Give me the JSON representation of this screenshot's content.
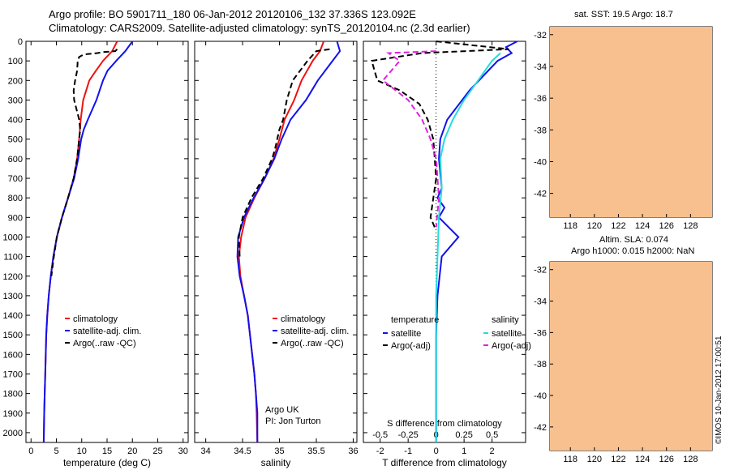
{
  "header": {
    "line1": "Argo profile: BO 5901711_180 06-Jan-2012 20120106_132 37.336S 123.092E",
    "line2": "Climatology: CARS2009. Satellite-adjusted climatology: synTS_20120104.nc (2.3d earlier)"
  },
  "colors": {
    "climatology": "#ee1111",
    "satellite": "#1111ee",
    "argo": "#000000",
    "sal_satellite": "#22dddd",
    "sal_argo": "#dd22dd",
    "land": "#f7c08e"
  },
  "chart_data": [
    {
      "type": "line",
      "id": "temperature",
      "xlabel": "temperature (deg C)",
      "xlim": [
        -1,
        31
      ],
      "ylim": [
        2050,
        0
      ],
      "xticks": [
        0,
        5,
        10,
        15,
        20,
        25,
        30
      ],
      "yticks": [
        0,
        100,
        200,
        300,
        400,
        500,
        600,
        700,
        800,
        900,
        1000,
        1100,
        1200,
        1300,
        1400,
        1500,
        1600,
        1700,
        1800,
        1900,
        2000
      ],
      "legend": [
        "climatology",
        "satellite-adj. clim.",
        "Argo(..raw -QC)"
      ],
      "series": [
        {
          "name": "climatology",
          "color": "#ee1111",
          "style": "solid",
          "x": [
            17,
            16,
            14.2,
            12.8,
            11.5,
            10.3,
            9.8,
            9.5,
            9.1,
            8.4,
            7.3,
            6.1,
            5.1,
            4.4,
            3.9,
            3.5,
            3.2,
            3.0,
            2.9,
            2.8,
            2.7,
            2.6,
            2.5
          ],
          "y": [
            0,
            50,
            100,
            150,
            200,
            300,
            400,
            500,
            600,
            700,
            800,
            900,
            1000,
            1100,
            1200,
            1300,
            1400,
            1500,
            1600,
            1700,
            1800,
            1900,
            2050
          ]
        },
        {
          "name": "satellite-adj. clim.",
          "color": "#1111ee",
          "style": "solid",
          "x": [
            20,
            18.6,
            16.8,
            15.1,
            14.2,
            12.9,
            11.2,
            10.4,
            9.9,
            9.3,
            8.5,
            7.3,
            6.1,
            5.1,
            4.4,
            3.9,
            3.5,
            3.2,
            3.0,
            2.9,
            2.8,
            2.7,
            2.6,
            2.5
          ],
          "y": [
            0,
            50,
            100,
            150,
            200,
            300,
            400,
            450,
            500,
            600,
            700,
            800,
            900,
            1000,
            1100,
            1200,
            1300,
            1400,
            1500,
            1600,
            1700,
            1800,
            1900,
            2050
          ]
        },
        {
          "name": "Argo(..raw -QC)",
          "color": "#000000",
          "style": "dash",
          "x": [
            17,
            16.6,
            14.2,
            13.1,
            11.1,
            10.2,
            9.5,
            9.2,
            9.1,
            8.7,
            8.4,
            8.5,
            9.0,
            9.5,
            9.7,
            9.5,
            9.1,
            8.4,
            7.3,
            6.1,
            5.1,
            4.5,
            4.0
          ],
          "y": [
            40,
            50,
            55,
            60,
            65,
            70,
            80,
            100,
            150,
            200,
            250,
            300,
            350,
            400,
            450,
            500,
            600,
            700,
            800,
            900,
            1000,
            1100,
            1200
          ]
        }
      ]
    },
    {
      "type": "line",
      "id": "salinity",
      "xlabel": "salinity",
      "xlim": [
        33.85,
        36.05
      ],
      "ylim": [
        2050,
        0
      ],
      "xticks": [
        34,
        34.5,
        35,
        35.5,
        36
      ],
      "legend": [
        "climatology",
        "satellite-adj. clim.",
        "Argo(..raw -QC)"
      ],
      "series": [
        {
          "name": "climatology",
          "color": "#ee1111",
          "style": "solid",
          "x": [
            35.6,
            35.55,
            35.45,
            35.3,
            35.2,
            35.07,
            35.0,
            34.92,
            34.8,
            34.66,
            34.54,
            34.48,
            34.45,
            34.47,
            34.52,
            34.57,
            34.6,
            34.63,
            34.66,
            34.68,
            34.69,
            34.7
          ],
          "y": [
            0,
            50,
            100,
            200,
            300,
            400,
            500,
            600,
            700,
            800,
            900,
            1000,
            1100,
            1200,
            1300,
            1400,
            1500,
            1600,
            1700,
            1800,
            1900,
            2050
          ]
        },
        {
          "name": "satellite-adj. clim.",
          "color": "#1111ee",
          "style": "solid",
          "x": [
            35.78,
            35.82,
            35.72,
            35.52,
            35.36,
            35.15,
            35.03,
            34.93,
            34.8,
            34.65,
            34.52,
            34.44,
            34.43,
            34.46,
            34.52,
            34.57,
            34.6,
            34.63,
            34.66,
            34.68,
            34.7,
            34.7
          ],
          "y": [
            0,
            50,
            100,
            200,
            300,
            400,
            500,
            600,
            700,
            800,
            900,
            1000,
            1100,
            1200,
            1300,
            1400,
            1500,
            1600,
            1700,
            1800,
            1900,
            2050
          ]
        },
        {
          "name": "Argo(..raw -QC)",
          "color": "#000000",
          "style": "dash",
          "x": [
            35.68,
            35.5,
            35.38,
            35.28,
            35.18,
            35.1,
            35.05,
            35.0,
            34.97,
            34.94,
            34.9,
            34.78,
            34.62,
            34.5,
            34.45,
            34.46
          ],
          "y": [
            40,
            50,
            100,
            150,
            200,
            300,
            400,
            450,
            500,
            550,
            600,
            700,
            800,
            900,
            1000,
            1100
          ]
        }
      ]
    },
    {
      "type": "line",
      "id": "differences",
      "xlabel": "T difference from climatology",
      "xlabel2": "S difference from climatology",
      "xlim": [
        -2.6,
        3.2
      ],
      "ylim": [
        2050,
        0
      ],
      "xticks": [
        -2,
        -1,
        0,
        1,
        2
      ],
      "xticks2": [
        -0.5,
        -0.25,
        0,
        0.25,
        0.5
      ],
      "xticks2_labels": [
        "-0.5",
        "-0.25",
        "0",
        "0.25",
        "0.5"
      ],
      "legend_temperature_title": "temperature",
      "legend_salinity_title": "salinity",
      "legend": [
        "satellite",
        "Argo(-adj)",
        "satellite",
        "Argo(-adj)"
      ],
      "series": [
        {
          "name": "satellite",
          "group": "temperature",
          "color": "#1111ee",
          "style": "solid",
          "x": [
            2.9,
            2.5,
            2.7,
            2.2,
            1.2,
            0.4,
            0.15,
            0.1,
            0.2,
            0.05,
            0.3,
            0.1,
            0.8,
            0.2,
            0.05,
            0.0,
            0.0
          ],
          "y": [
            0,
            30,
            60,
            100,
            250,
            400,
            500,
            600,
            750,
            800,
            850,
            900,
            1000,
            1100,
            1300,
            1500,
            2050
          ]
        },
        {
          "name": "Argo(-adj)",
          "group": "temperature",
          "color": "#000000",
          "style": "dash",
          "x": [
            0.0,
            2.6,
            -0.5,
            -2.3,
            -2.1,
            -1.3,
            -0.6,
            -0.3,
            -0.1,
            0.0,
            -0.2,
            -0.05
          ],
          "y": [
            0,
            40,
            60,
            100,
            200,
            250,
            320,
            400,
            500,
            700,
            900,
            950
          ]
        },
        {
          "name": "satellite",
          "group": "salinity",
          "color": "#22dddd",
          "style": "solid",
          "x": [
            2.3,
            2.0,
            1.5,
            1.0,
            0.6,
            0.3,
            0.15,
            0.2,
            0.1,
            0.05,
            0.0,
            0.0
          ],
          "y": [
            60,
            100,
            200,
            300,
            400,
            500,
            600,
            750,
            900,
            1100,
            1300,
            2050
          ]
        },
        {
          "name": "Argo(-adj)",
          "group": "salinity",
          "color": "#dd22dd",
          "style": "dash",
          "x": [
            0.0,
            -1.7,
            -1.3,
            -1.9,
            -1.0,
            -0.5,
            -0.2,
            0.0,
            0.1,
            0.0
          ],
          "y": [
            50,
            60,
            100,
            200,
            300,
            400,
            500,
            600,
            800,
            950
          ]
        }
      ]
    },
    {
      "type": "heatmap",
      "id": "sst_map",
      "title": "sat. SST: 19.5  Argo: 18.7",
      "xticks": [
        118,
        120,
        122,
        124,
        126,
        128
      ],
      "yticks": [
        -32,
        -34,
        -36,
        -38,
        -40,
        -42
      ],
      "xlim": [
        116.3,
        129.8
      ],
      "ylim": [
        -43.5,
        -31.5
      ],
      "marker": {
        "lon": 123.09,
        "lat": -37.34
      }
    },
    {
      "type": "heatmap",
      "id": "sla_map",
      "title": "Altim. SLA: 0.074",
      "title2": "Argo h1000: 0.015 h2000: NaN",
      "xticks": [
        118,
        120,
        122,
        124,
        126,
        128
      ],
      "yticks": [
        -32,
        -34,
        -36,
        -38,
        -40,
        -42
      ],
      "xlim": [
        116.3,
        129.8
      ],
      "ylim": [
        -43.5,
        -31.5
      ],
      "marker": {
        "lon": 123.09,
        "lat": -37.34
      }
    }
  ],
  "footer": {
    "annotation_line1": "Argo UK",
    "annotation_line2": "PI: Jon Turton",
    "credit": "©IMOS 10-Jan-2012 17:00:51"
  }
}
